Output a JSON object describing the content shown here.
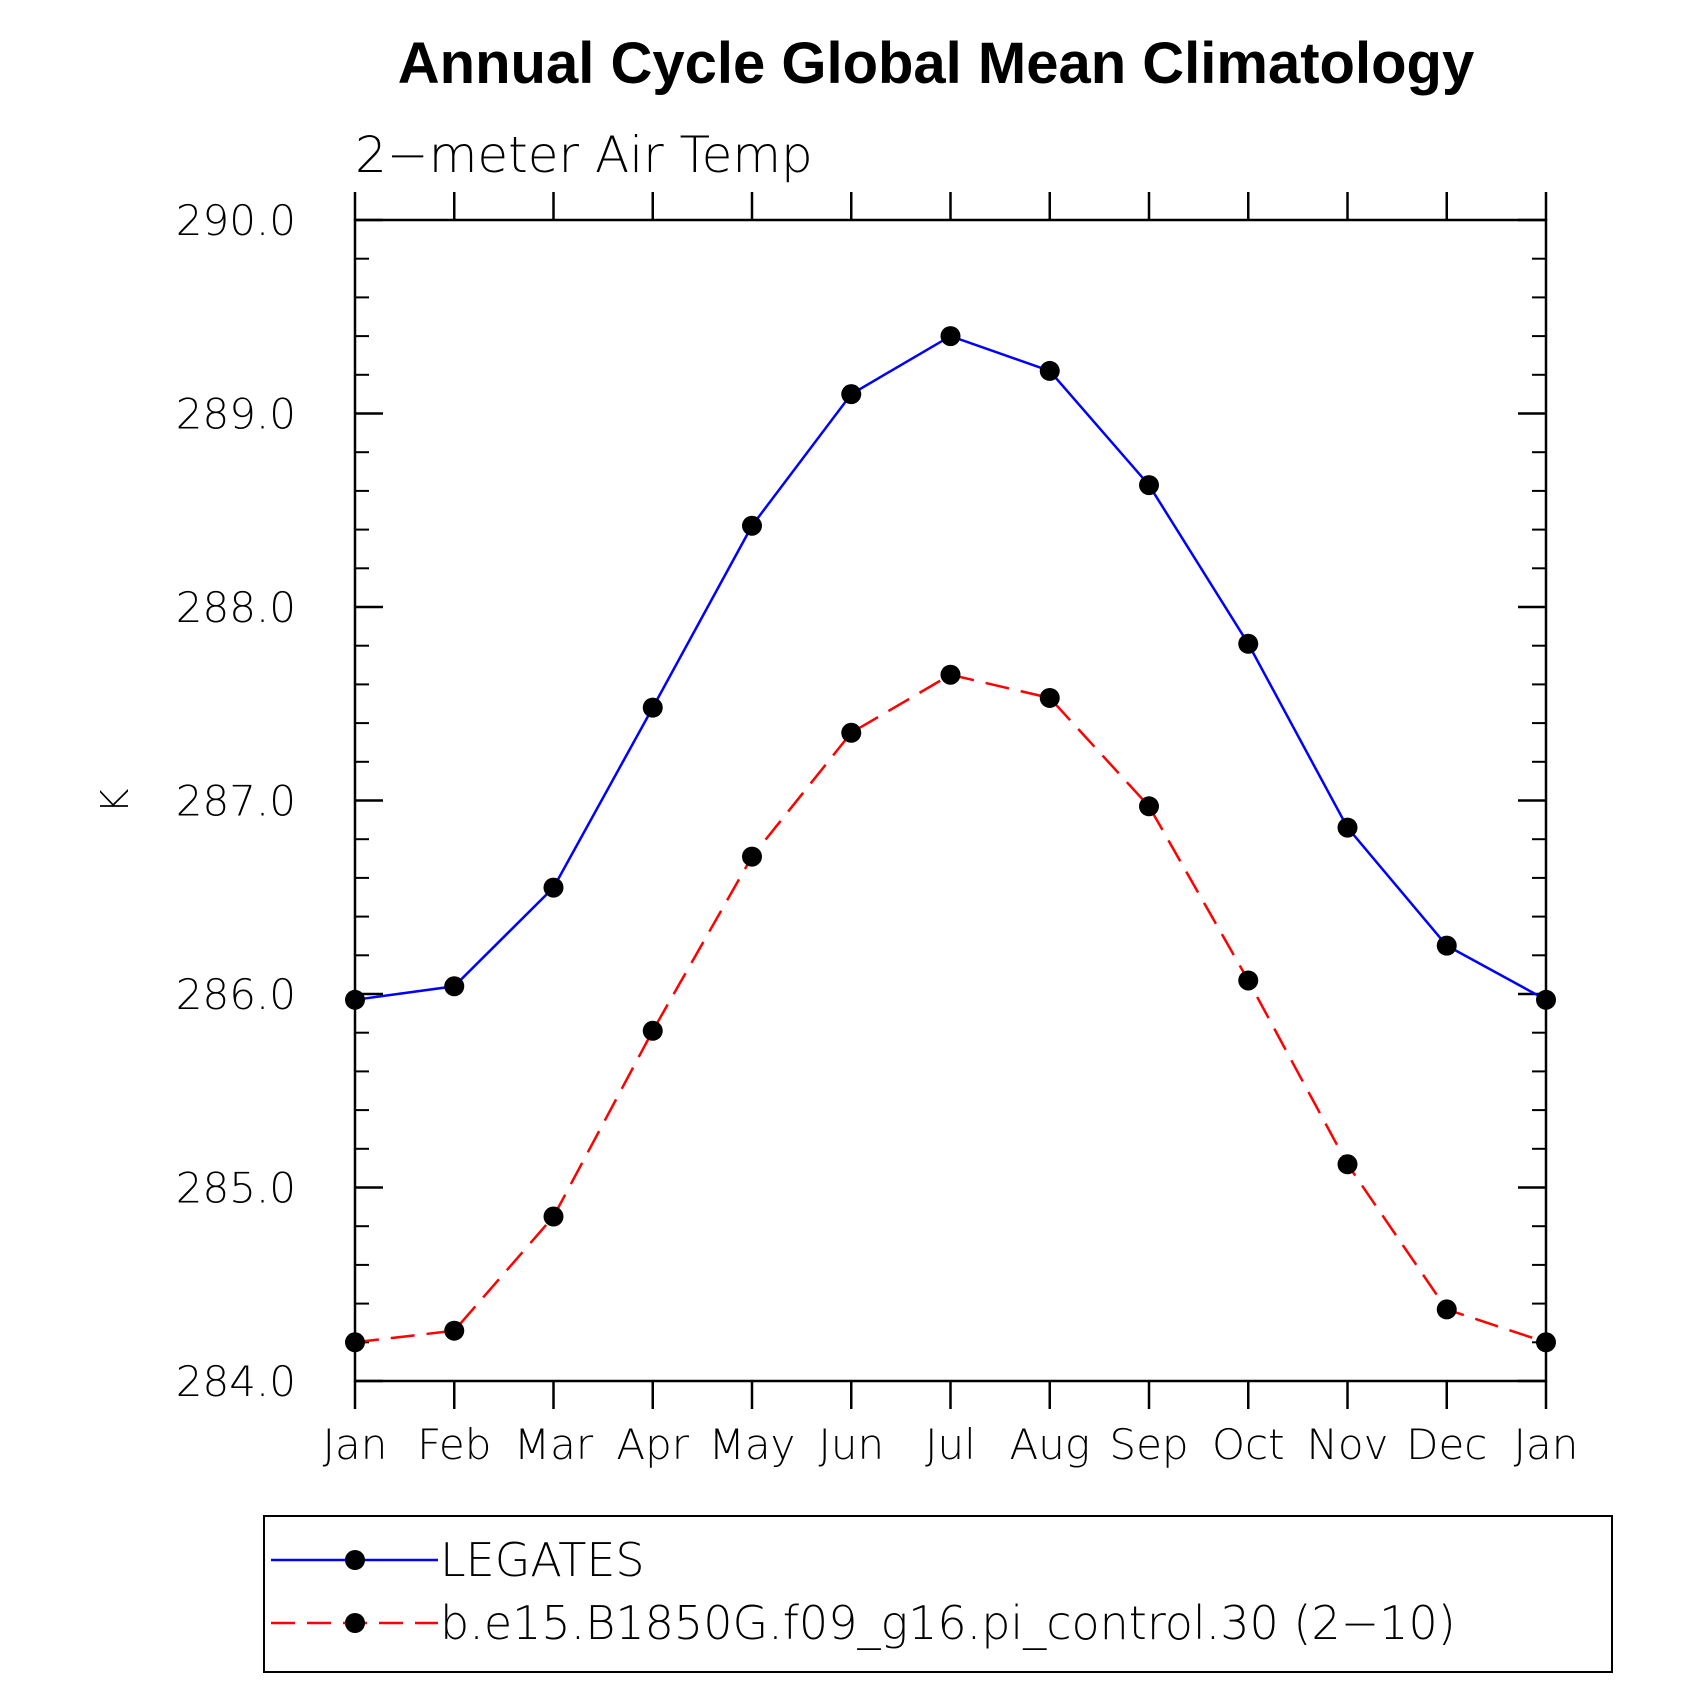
{
  "chart_data": {
    "type": "line",
    "title": "Annual Cycle Global Mean Climatology",
    "subtitle": "2−meter Air Temp",
    "ylabel": "K",
    "xlabel": "",
    "categories": [
      "Jan",
      "Feb",
      "Mar",
      "Apr",
      "May",
      "Jun",
      "Jul",
      "Aug",
      "Sep",
      "Oct",
      "Nov",
      "Dec",
      "Jan"
    ],
    "ylim": [
      284.0,
      290.0
    ],
    "yticks": [
      "284.0",
      "285.0",
      "286.0",
      "287.0",
      "288.0",
      "289.0",
      "290.0"
    ],
    "grid": false,
    "legend_position": "bottom",
    "series": [
      {
        "name": "LEGATES",
        "color": "#0000ff",
        "dash": "solid",
        "values": [
          285.97,
          286.04,
          286.55,
          287.48,
          288.42,
          289.1,
          289.4,
          289.22,
          288.63,
          287.81,
          286.86,
          286.25,
          285.97
        ]
      },
      {
        "name": "b.e15.B1850G.f09_g16.pi_control.30 (2−10)",
        "color": "#ff0000",
        "dash": "dashed",
        "values": [
          284.2,
          284.26,
          284.85,
          285.81,
          286.71,
          287.35,
          287.65,
          287.53,
          286.97,
          286.07,
          285.12,
          284.37,
          284.2
        ]
      }
    ]
  }
}
